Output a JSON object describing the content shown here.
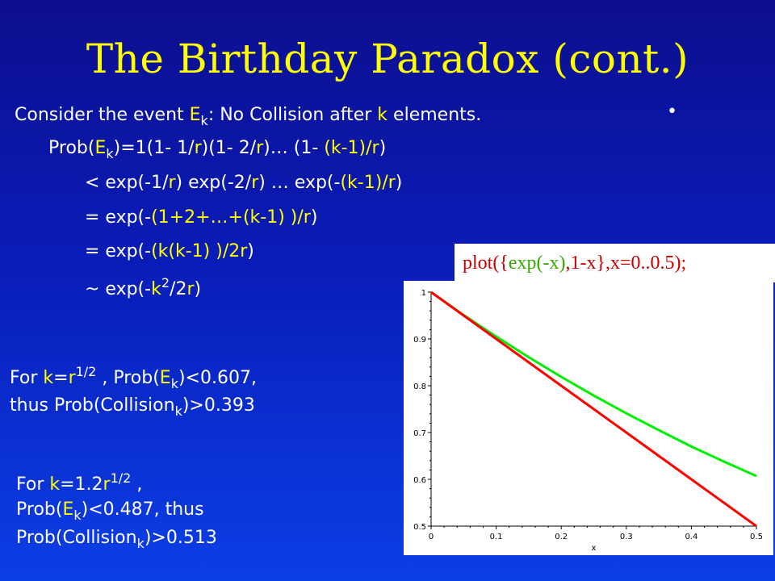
{
  "title": "The Birthday Paradox (cont.)",
  "bullet": "•",
  "lines": {
    "l1": {
      "a": "Consider the event ",
      "E": "E",
      "k": "k",
      "b": ": No Collision after ",
      "k2": "k",
      "c": " elements."
    },
    "l2": {
      "a": "Prob(",
      "E": "E",
      "k": "k",
      "b": ")=1(1- 1/",
      "r1": "r",
      "c": ")(1- 2/",
      "r2": "r",
      "d": ")… (1- ",
      "e": "(k-1)/r",
      "f": ")"
    },
    "l3": {
      "a": "< exp(-1/",
      "r1": "r",
      "b": ") exp(-2/",
      "r2": "r",
      "c": ") … exp(-",
      "d": "(k-1)/r",
      "e": ")"
    },
    "l4": {
      "a": "= exp(-",
      "b": "(1+2+…+(k-1) )/r",
      "c": ")"
    },
    "l5": {
      "a": "= exp(-",
      "b": "(k(k-1) )/2r",
      "c": ")"
    },
    "l6": {
      "a": "~ exp(-",
      "k": "k",
      "sup": "2",
      "b": "/2",
      "r": "r",
      "c": ")"
    }
  },
  "block1": {
    "l1a": "For ",
    "k": "k",
    "eq": "=",
    "r": "r",
    "sup": "1/2",
    "l1b": " , Prob(",
    "E": "E",
    "sub": "k",
    "l1c": ")<0.607,",
    "l2a": "thus  Prob(Collision",
    "sub2": "k",
    "l2b": ")>0.393"
  },
  "block2": {
    "l1a": "For ",
    "k": "k",
    "eq": "=1.2",
    "r": "r",
    "sup": "1/2",
    "l1b": " ,",
    "l2a": "Prob(",
    "E": "E",
    "sub": "k",
    "l2b": ")<0.487, thus",
    "l3a": "Prob(Collision",
    "sub2": "k",
    "l3b": ")>0.513"
  },
  "plot_caption": {
    "a": "plot({",
    "b": "exp(-x)",
    "c": ",1-x},x=0..0.5);"
  },
  "chart_data": {
    "type": "line",
    "title": "",
    "xlabel": "x",
    "ylabel": "",
    "xlim": [
      0,
      0.5
    ],
    "ylim": [
      0.5,
      1
    ],
    "x_ticks": [
      "0",
      "0.1",
      "0.2",
      "0.3",
      "0.4",
      "0.5"
    ],
    "y_ticks": [
      "0.5",
      "0.6",
      "0.7",
      "0.8",
      "0.9",
      "1"
    ],
    "x": [
      0,
      0.05,
      0.1,
      0.15,
      0.2,
      0.25,
      0.3,
      0.35,
      0.4,
      0.45,
      0.5
    ],
    "series": [
      {
        "values": [
          1,
          0.951,
          0.905,
          0.861,
          0.819,
          0.779,
          0.741,
          0.705,
          0.67,
          0.638,
          0.607
        ],
        "color": "#00ee00"
      },
      {
        "values": [
          1,
          0.95,
          0.9,
          0.85,
          0.8,
          0.75,
          0.7,
          0.65,
          0.6,
          0.55,
          0.5
        ],
        "color": "#ff0000"
      }
    ]
  }
}
